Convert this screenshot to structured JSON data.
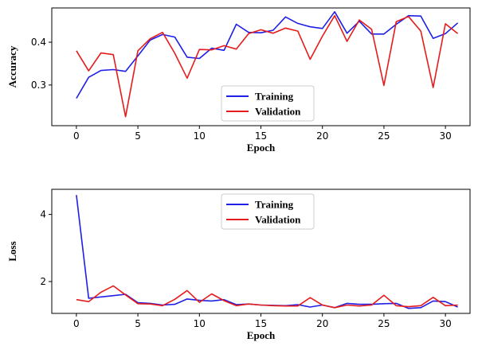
{
  "chart_data": [
    {
      "type": "line",
      "xlabel": "Epoch",
      "ylabel": "Accuracy",
      "xlim": [
        -2,
        32
      ],
      "ylim": [
        0.205,
        0.48
      ],
      "xticks": [
        0,
        5,
        10,
        15,
        20,
        25,
        30
      ],
      "yticks": [
        0.3,
        0.4
      ],
      "ytick_labels": [
        "0.3",
        "0.4"
      ],
      "grid": false,
      "legend_position": "bottom-center",
      "x": [
        0,
        1,
        2,
        3,
        4,
        5,
        6,
        7,
        8,
        9,
        10,
        11,
        12,
        13,
        14,
        15,
        16,
        17,
        18,
        19,
        20,
        21,
        22,
        23,
        24,
        25,
        26,
        27,
        28,
        29,
        30,
        31
      ],
      "series": [
        {
          "name": "Training",
          "color": "#1f1fe6",
          "values": [
            0.269,
            0.318,
            0.334,
            0.336,
            0.332,
            0.368,
            0.405,
            0.418,
            0.412,
            0.365,
            0.362,
            0.386,
            0.381,
            0.442,
            0.423,
            0.422,
            0.428,
            0.459,
            0.444,
            0.436,
            0.432,
            0.471,
            0.421,
            0.449,
            0.419,
            0.419,
            0.442,
            0.462,
            0.461,
            0.409,
            0.42,
            0.445
          ]
        },
        {
          "name": "Validation",
          "color": "#e61c1c",
          "values": [
            0.38,
            0.333,
            0.375,
            0.371,
            0.226,
            0.38,
            0.408,
            0.423,
            0.374,
            0.316,
            0.383,
            0.382,
            0.392,
            0.384,
            0.42,
            0.429,
            0.421,
            0.433,
            0.426,
            0.36,
            0.414,
            0.462,
            0.402,
            0.452,
            0.43,
            0.299,
            0.448,
            0.46,
            0.426,
            0.294,
            0.443,
            0.42
          ]
        }
      ]
    },
    {
      "type": "line",
      "xlabel": "Epoch",
      "ylabel": "Loss",
      "xlim": [
        -2,
        32
      ],
      "ylim": [
        1.05,
        4.75
      ],
      "xticks": [
        0,
        5,
        10,
        15,
        20,
        25,
        30
      ],
      "yticks": [
        2,
        4
      ],
      "ytick_labels": [
        "2",
        "4"
      ],
      "grid": false,
      "legend_position": "top-center",
      "x": [
        0,
        1,
        2,
        3,
        4,
        5,
        6,
        7,
        8,
        9,
        10,
        11,
        12,
        13,
        14,
        15,
        16,
        17,
        18,
        19,
        20,
        21,
        22,
        23,
        24,
        25,
        26,
        27,
        28,
        29,
        30,
        31
      ],
      "series": [
        {
          "name": "Training",
          "color": "#1f1fe6",
          "values": [
            4.58,
            1.5,
            1.54,
            1.58,
            1.62,
            1.37,
            1.35,
            1.3,
            1.32,
            1.48,
            1.44,
            1.42,
            1.46,
            1.31,
            1.33,
            1.3,
            1.29,
            1.28,
            1.31,
            1.24,
            1.3,
            1.22,
            1.35,
            1.32,
            1.32,
            1.34,
            1.35,
            1.2,
            1.22,
            1.42,
            1.4,
            1.24
          ]
        },
        {
          "name": "Validation",
          "color": "#e61c1c",
          "values": [
            1.46,
            1.4,
            1.68,
            1.87,
            1.6,
            1.34,
            1.33,
            1.28,
            1.47,
            1.73,
            1.38,
            1.63,
            1.43,
            1.28,
            1.33,
            1.3,
            1.28,
            1.27,
            1.27,
            1.52,
            1.3,
            1.22,
            1.3,
            1.27,
            1.3,
            1.59,
            1.28,
            1.25,
            1.28,
            1.53,
            1.28,
            1.3
          ]
        }
      ]
    }
  ]
}
